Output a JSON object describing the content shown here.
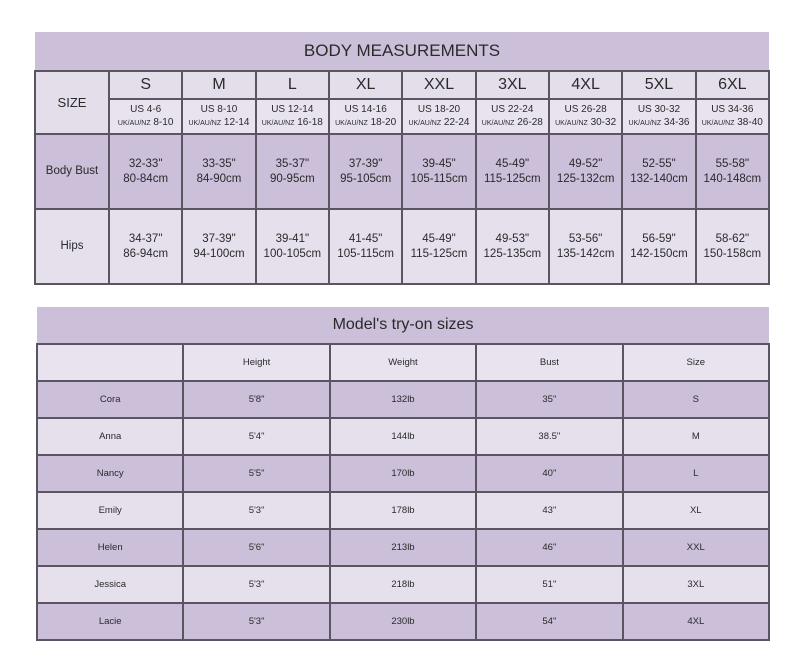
{
  "body_measurements": {
    "title": "BODY MEASUREMENTS",
    "size_label": "SIZE",
    "bust_label": "Body Bust",
    "hips_label": "Hips",
    "uk_prefix": "UK/AU/NZ",
    "sizes": [
      {
        "size": "S",
        "us": "US 4-6",
        "uk": "8-10",
        "bust_in": "32-33\"",
        "bust_cm": "80-84cm",
        "hips_in": "34-37\"",
        "hips_cm": "86-94cm"
      },
      {
        "size": "M",
        "us": "US 8-10",
        "uk": "12-14",
        "bust_in": "33-35\"",
        "bust_cm": "84-90cm",
        "hips_in": "37-39\"",
        "hips_cm": "94-100cm"
      },
      {
        "size": "L",
        "us": "US 12-14",
        "uk": "16-18",
        "bust_in": "35-37\"",
        "bust_cm": "90-95cm",
        "hips_in": "39-41\"",
        "hips_cm": "100-105cm"
      },
      {
        "size": "XL",
        "us": "US 14-16",
        "uk": "18-20",
        "bust_in": "37-39\"",
        "bust_cm": "95-105cm",
        "hips_in": "41-45\"",
        "hips_cm": "105-115cm"
      },
      {
        "size": "XXL",
        "us": "US 18-20",
        "uk": "22-24",
        "bust_in": "39-45\"",
        "bust_cm": "105-115cm",
        "hips_in": "45-49\"",
        "hips_cm": "115-125cm"
      },
      {
        "size": "3XL",
        "us": "US 22-24",
        "uk": "26-28",
        "bust_in": "45-49\"",
        "bust_cm": "115-125cm",
        "hips_in": "49-53\"",
        "hips_cm": "125-135cm"
      },
      {
        "size": "4XL",
        "us": "US 26-28",
        "uk": "30-32",
        "bust_in": "49-52\"",
        "bust_cm": "125-132cm",
        "hips_in": "53-56\"",
        "hips_cm": "135-142cm"
      },
      {
        "size": "5XL",
        "us": "US 30-32",
        "uk": "34-36",
        "bust_in": "52-55\"",
        "bust_cm": "132-140cm",
        "hips_in": "56-59\"",
        "hips_cm": "142-150cm"
      },
      {
        "size": "6XL",
        "us": "US 34-36",
        "uk": "38-40",
        "bust_in": "55-58\"",
        "bust_cm": "140-148cm",
        "hips_in": "58-62\"",
        "hips_cm": "150-158cm"
      }
    ]
  },
  "models": {
    "title": "Model's try-on sizes",
    "headers": [
      "",
      "Height",
      "Weight",
      "Bust",
      "Size"
    ],
    "rows": [
      [
        "Cora",
        "5'8\"",
        "132lb",
        "35\"",
        "S"
      ],
      [
        "Anna",
        "5'4\"",
        "144lb",
        "38.5\"",
        "M"
      ],
      [
        "Nancy",
        "5'5\"",
        "170lb",
        "40\"",
        "L"
      ],
      [
        "Emily",
        "5'3\"",
        "178lb",
        "43\"",
        "XL"
      ],
      [
        "Helen",
        "5'6\"",
        "213lb",
        "46\"",
        "XXL"
      ],
      [
        "Jessica",
        "5'3\"",
        "218lb",
        "51\"",
        "3XL"
      ],
      [
        "Lacie",
        "5'3\"",
        "230lb",
        "54\"",
        "4XL"
      ]
    ]
  },
  "colors": {
    "dark_row": "#cbbfd9",
    "light_row": "#e6e0ec"
  }
}
